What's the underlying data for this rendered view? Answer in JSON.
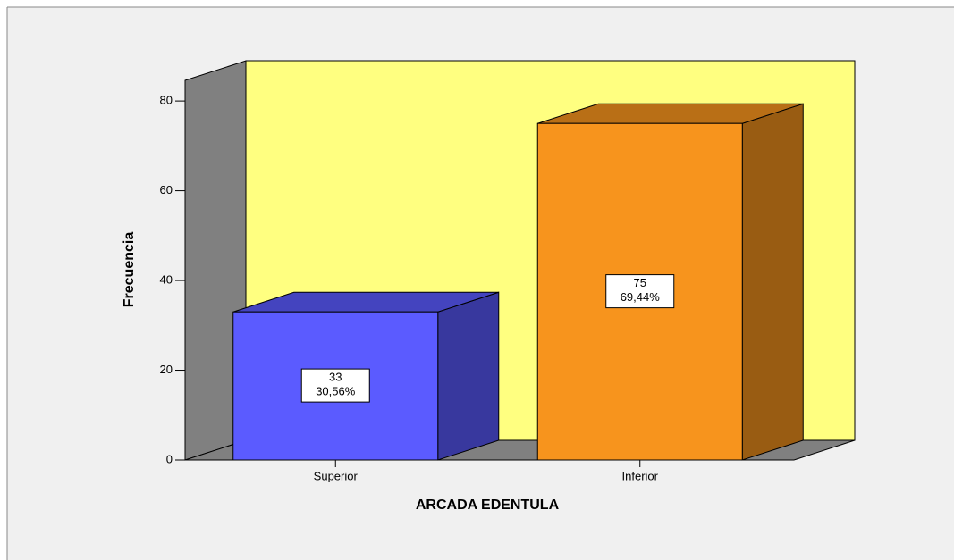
{
  "chart_data": {
    "type": "bar3d",
    "categories": [
      "Superior",
      "Inferior"
    ],
    "values": [
      33,
      75
    ],
    "percent_labels": [
      "30,56%",
      "69,44%"
    ],
    "colors": [
      "#5b5bff",
      "#f7941d"
    ],
    "xlabel": "ARCADA EDENTULA",
    "ylabel": "Frecuencia",
    "ylim": [
      0,
      84.6
    ],
    "yticks": [
      0,
      20,
      40,
      60,
      80
    ]
  }
}
